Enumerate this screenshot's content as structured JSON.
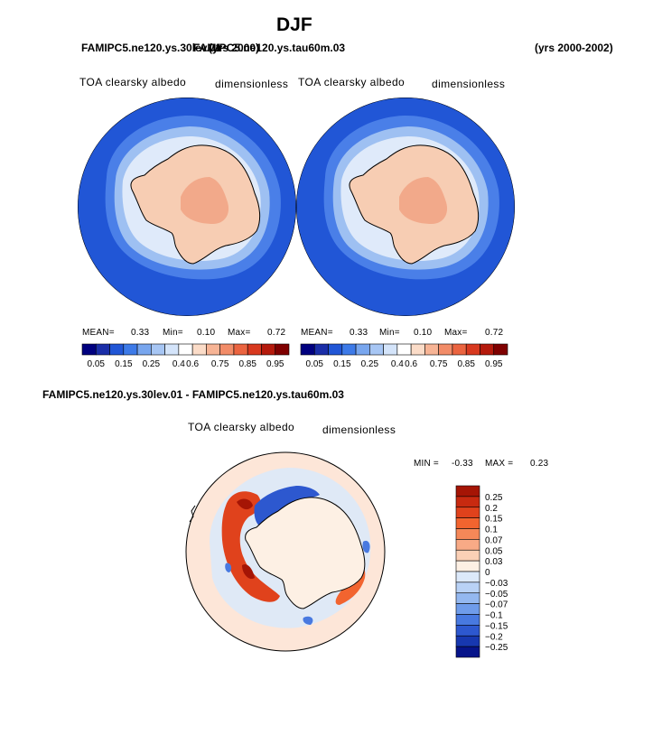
{
  "page": {
    "main_title": "DJF",
    "top_left_case": "FAMIPC5.ne120.ys.30lev.01",
    "top_mid_case": "FAMIPC5.ne120.ys.tau60m.03",
    "top_mid_years": "(yrs 2000)",
    "top_right_years": "(yrs 2000-2002)",
    "diff_case_title": "FAMIPC5.ne120.ys.30lev.01 - FAMIPC5.ne120.ys.tau60m.03"
  },
  "colors": {
    "ocean": "#2156d6",
    "sea_ice_edge": "#4a7fe8",
    "sea_ice_mid": "#9ec0f2",
    "sea_ice_light": "#dfeafa",
    "land": "#f7cdb3",
    "plateau": "#f2a98a",
    "diff_bg": "#fde6d8"
  },
  "chart_data": [
    {
      "type": "heatmap",
      "panel": "left",
      "variable": "TOA clearsky albedo",
      "units": "dimensionless",
      "stats": {
        "mean_label": "MEAN=",
        "mean": "0.33",
        "min_label": "Min=",
        "min": "0.10",
        "max_label": "Max=",
        "max": "0.72"
      },
      "colorbar": {
        "orientation": "horizontal",
        "colors": [
          "#00007f",
          "#1a2ea8",
          "#2156d6",
          "#3d7ae8",
          "#78a6ee",
          "#a7c6f4",
          "#d4e4fa",
          "#ffffff",
          "#fbdcc8",
          "#f7b495",
          "#f28c68",
          "#eb6440",
          "#d8391f",
          "#b51a0c",
          "#7f0000"
        ],
        "tick_labels": [
          "0.05",
          "0.15",
          "0.25",
          "0.4",
          "0.6",
          "0.75",
          "0.85",
          "0.95"
        ]
      }
    },
    {
      "type": "heatmap",
      "panel": "right",
      "variable": "TOA clearsky albedo",
      "units": "dimensionless",
      "stats": {
        "mean_label": "MEAN=",
        "mean": "0.33",
        "min_label": "Min=",
        "min": "0.10",
        "max_label": "Max=",
        "max": "0.72"
      },
      "colorbar": {
        "orientation": "horizontal",
        "colors": [
          "#00007f",
          "#1a2ea8",
          "#2156d6",
          "#3d7ae8",
          "#78a6ee",
          "#a7c6f4",
          "#d4e4fa",
          "#ffffff",
          "#fbdcc8",
          "#f7b495",
          "#f28c68",
          "#eb6440",
          "#d8391f",
          "#b51a0c",
          "#7f0000"
        ],
        "tick_labels": [
          "0.05",
          "0.15",
          "0.25",
          "0.4",
          "0.6",
          "0.75",
          "0.85",
          "0.95"
        ]
      }
    },
    {
      "type": "heatmap",
      "panel": "difference",
      "variable": "TOA clearsky albedo",
      "units": "dimensionless",
      "stats": {
        "min_label": "MIN =",
        "min": "-0.33",
        "max_label": "MAX =",
        "max": "0.23"
      },
      "colorbar": {
        "orientation": "vertical",
        "colors_top_to_bottom": [
          "#a51505",
          "#c82a10",
          "#e0421c",
          "#f2642f",
          "#f58858",
          "#f8aa86",
          "#fbd0b6",
          "#fdf0e4",
          "#dce9fa",
          "#b9d2f6",
          "#94b8f0",
          "#6f9cea",
          "#4879e0",
          "#2d58cf",
          "#1738b0",
          "#06148a"
        ],
        "tick_labels_top_to_bottom": [
          "0.25",
          "0.2",
          "0.15",
          "0.1",
          "0.07",
          "0.05",
          "0.03",
          "0",
          "-0.03",
          "-0.05",
          "-0.07",
          "-0.1",
          "-0.15",
          "-0.2",
          "-0.25"
        ]
      }
    }
  ]
}
